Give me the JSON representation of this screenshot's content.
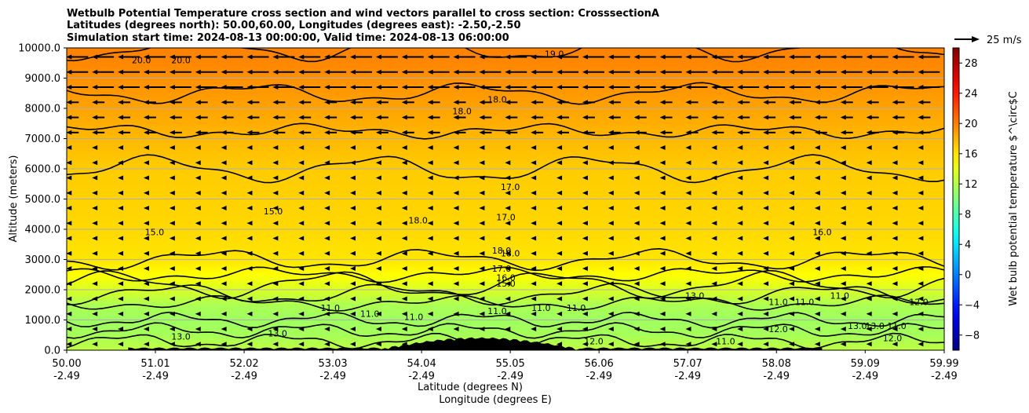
{
  "chart_data": {
    "type": "heatmap",
    "title_lines": [
      "Wetbulb Potential Temperature cross section and wind vectors parallel to cross section: CrosssectionA",
      "Latitudes (degrees north): 50.00,60.00, Longitudes (degrees east): -2.50,-2.50",
      "Simulation start time: 2024-08-13 00:00:00, Valid time: 2024-08-13 06:00:00"
    ],
    "ylabel": "Altitude (meters)",
    "xlabel": "Latitude (degrees N)",
    "xlabel2": "Longitude (degrees E)",
    "xlim": [
      50.0,
      59.99
    ],
    "ylim": [
      0,
      10000
    ],
    "grid": "horizontal",
    "x_ticks": [
      50.0,
      51.01,
      52.02,
      53.03,
      54.04,
      55.05,
      56.06,
      57.07,
      58.08,
      59.09,
      59.99
    ],
    "x_tick_labels": [
      "50.00",
      "51.01",
      "52.02",
      "53.03",
      "54.04",
      "55.05",
      "56.06",
      "57.07",
      "58.08",
      "59.09",
      "59.99"
    ],
    "x_tick_labels2": [
      "-2.49",
      "-2.49",
      "-2.49",
      "-2.49",
      "-2.49",
      "-2.49",
      "-2.49",
      "-2.49",
      "-2.49",
      "-2.49",
      "-2.49"
    ],
    "y_ticks": [
      0,
      1000,
      2000,
      3000,
      4000,
      5000,
      6000,
      7000,
      8000,
      9000,
      10000
    ],
    "y_tick_labels": [
      "0.0",
      "1000.0",
      "2000.0",
      "3000.0",
      "4000.0",
      "5000.0",
      "6000.0",
      "7000.0",
      "8000.0",
      "9000.0",
      "10000.0"
    ],
    "colorbar": {
      "label": "Wet bulb potential temperature $^\\circ$C",
      "range": [
        -10,
        30
      ],
      "colormap": "jet",
      "ticks": [
        -8,
        -4,
        0,
        4,
        8,
        12,
        16,
        20,
        24,
        28
      ],
      "tick_labels": [
        "−8",
        "−4",
        "0",
        "4",
        "8",
        "12",
        "16",
        "20",
        "24",
        "28"
      ]
    },
    "quiver_key": {
      "label": "25 m/s",
      "speed_ms": 25
    },
    "wind_direction": "toward lower latitude",
    "field_profile": {
      "altitude_m": [
        0,
        500,
        1000,
        1500,
        2000,
        2500,
        3000,
        4000,
        5000,
        6000,
        7000,
        8000,
        9000,
        10000
      ],
      "theta_w_c": [
        12.5,
        11.5,
        11.2,
        11.8,
        13.5,
        15.0,
        16.0,
        16.5,
        16.8,
        17.0,
        17.8,
        18.6,
        19.4,
        20.0
      ]
    },
    "contour_labels": [
      {
        "x": 50.85,
        "y": 9500,
        "text": "20.0"
      },
      {
        "x": 51.3,
        "y": 9500,
        "text": "20.0"
      },
      {
        "x": 55.55,
        "y": 9700,
        "text": "19.0"
      },
      {
        "x": 54.5,
        "y": 7800,
        "text": "18.0"
      },
      {
        "x": 54.9,
        "y": 8200,
        "text": "18.0"
      },
      {
        "x": 52.35,
        "y": 4500,
        "text": "15.0"
      },
      {
        "x": 51.0,
        "y": 3800,
        "text": "15.0"
      },
      {
        "x": 54.0,
        "y": 4200,
        "text": "18.0"
      },
      {
        "x": 55.05,
        "y": 5300,
        "text": "17.0"
      },
      {
        "x": 55.0,
        "y": 4300,
        "text": "17.0"
      },
      {
        "x": 54.95,
        "y": 3200,
        "text": "18.0"
      },
      {
        "x": 55.05,
        "y": 3100,
        "text": "18.0"
      },
      {
        "x": 54.95,
        "y": 2600,
        "text": "17.0"
      },
      {
        "x": 55.0,
        "y": 2300,
        "text": "16.0"
      },
      {
        "x": 55.0,
        "y": 2100,
        "text": "15.0"
      },
      {
        "x": 53.0,
        "y": 1300,
        "text": "11.0"
      },
      {
        "x": 53.45,
        "y": 1100,
        "text": "11.0"
      },
      {
        "x": 53.95,
        "y": 1000,
        "text": "11.0"
      },
      {
        "x": 54.9,
        "y": 1200,
        "text": "11.0"
      },
      {
        "x": 55.4,
        "y": 1300,
        "text": "11.0"
      },
      {
        "x": 55.8,
        "y": 1300,
        "text": "11.0"
      },
      {
        "x": 57.15,
        "y": 1700,
        "text": "13.0"
      },
      {
        "x": 58.1,
        "y": 1500,
        "text": "11.0"
      },
      {
        "x": 58.4,
        "y": 1500,
        "text": "11.0"
      },
      {
        "x": 58.8,
        "y": 1700,
        "text": "11.0"
      },
      {
        "x": 58.6,
        "y": 3800,
        "text": "16.0"
      },
      {
        "x": 59.2,
        "y": 700,
        "text": "13.0"
      },
      {
        "x": 59.0,
        "y": 700,
        "text": "13.0"
      },
      {
        "x": 59.45,
        "y": 700,
        "text": "11.0"
      },
      {
        "x": 59.7,
        "y": 1500,
        "text": "12.0"
      },
      {
        "x": 59.4,
        "y": 300,
        "text": "12.0"
      },
      {
        "x": 58.1,
        "y": 600,
        "text": "12.0"
      },
      {
        "x": 57.5,
        "y": 200,
        "text": "11.0"
      },
      {
        "x": 56.0,
        "y": 200,
        "text": "12.0"
      },
      {
        "x": 52.4,
        "y": 450,
        "text": "13.0"
      },
      {
        "x": 51.3,
        "y": 350,
        "text": "13.0"
      }
    ]
  }
}
